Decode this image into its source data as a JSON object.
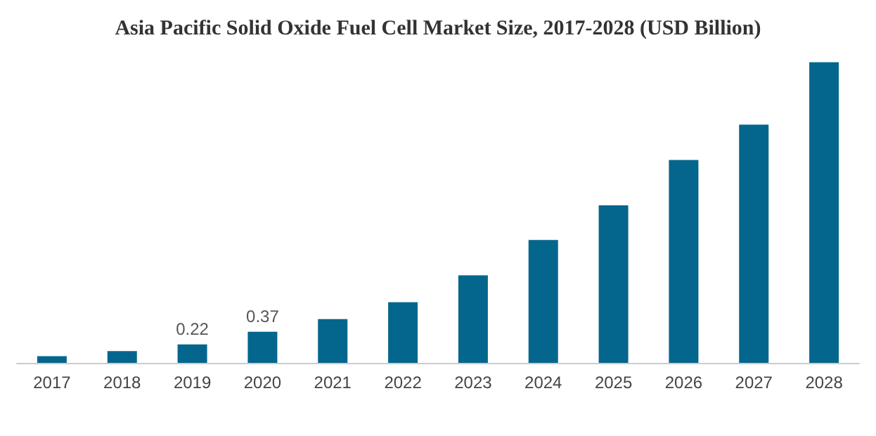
{
  "chart_data": {
    "type": "bar",
    "title": "Asia Pacific Solid Oxide Fuel Cell Market Size, 2017-2028 (USD Billion)",
    "categories": [
      "2017",
      "2018",
      "2019",
      "2020",
      "2021",
      "2022",
      "2023",
      "2024",
      "2025",
      "2026",
      "2027",
      "2028"
    ],
    "values": [
      0.08,
      0.14,
      0.22,
      0.37,
      0.52,
      0.72,
      1.04,
      1.46,
      1.87,
      2.41,
      2.83,
      3.57
    ],
    "value_labels": [
      null,
      null,
      "0.22",
      "0.37",
      null,
      null,
      null,
      null,
      null,
      null,
      null,
      null
    ],
    "color": "#05668d"
  }
}
